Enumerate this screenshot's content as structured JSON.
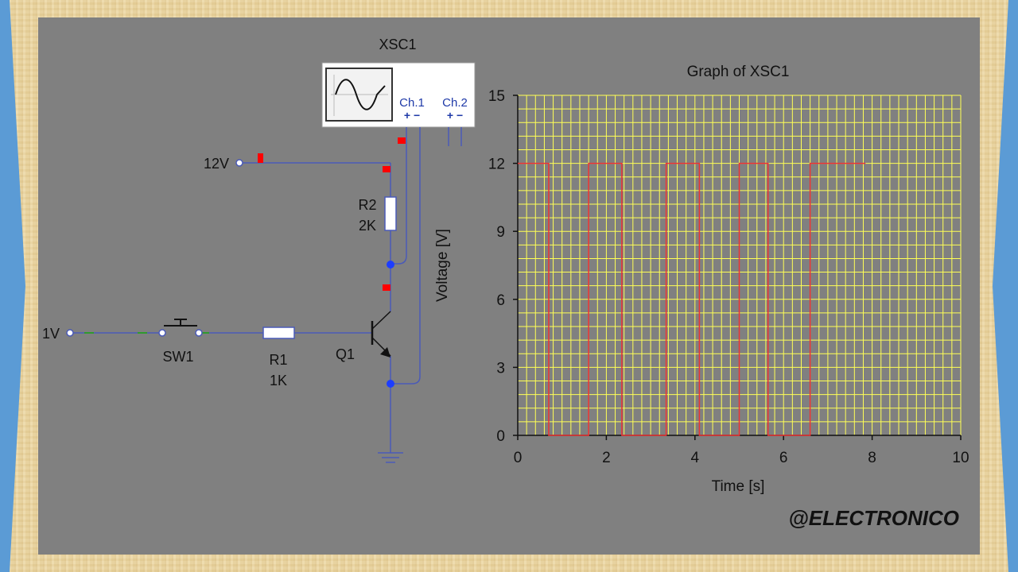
{
  "circuit": {
    "scope_label": "XSC1",
    "ch1_label": "Ch.1",
    "ch2_label": "Ch.2",
    "ch1_pins": "+ −",
    "ch2_pins": "+ −",
    "supply_label": "12V",
    "input_label": "1V",
    "r2_name": "R2",
    "r2_value": "2K",
    "r1_name": "R1",
    "r1_value": "1K",
    "switch_name": "SW1",
    "transistor_name": "Q1",
    "wire_color": "#4a5ab8",
    "probe_color": "#ff0000",
    "node_color": "#1d3dff"
  },
  "chart_data": {
    "type": "line",
    "title": "Graph of XSC1",
    "xlabel": "Time [s]",
    "ylabel": "Voltage [V]",
    "xlim": [
      0,
      10
    ],
    "ylim": [
      0,
      15
    ],
    "xticks": [
      0,
      2,
      4,
      6,
      8,
      10
    ],
    "yticks": [
      0,
      3,
      6,
      9,
      12,
      15
    ],
    "grid": true,
    "grid_color": "#ffff55",
    "plot_bg": "#808080",
    "series": [
      {
        "color": "#ee3333",
        "x": [
          0,
          0.7,
          0.7,
          1.6,
          1.6,
          2.35,
          2.35,
          3.35,
          3.35,
          4.1,
          4.1,
          5.0,
          5.0,
          5.65,
          5.65,
          6.6,
          6.6,
          7.85
        ],
        "y": [
          12,
          12,
          0,
          0,
          12,
          12,
          0,
          0,
          12,
          12,
          0,
          0,
          12,
          12,
          0,
          0,
          12,
          12
        ]
      }
    ]
  },
  "watermark": "@ELECTRONICO"
}
